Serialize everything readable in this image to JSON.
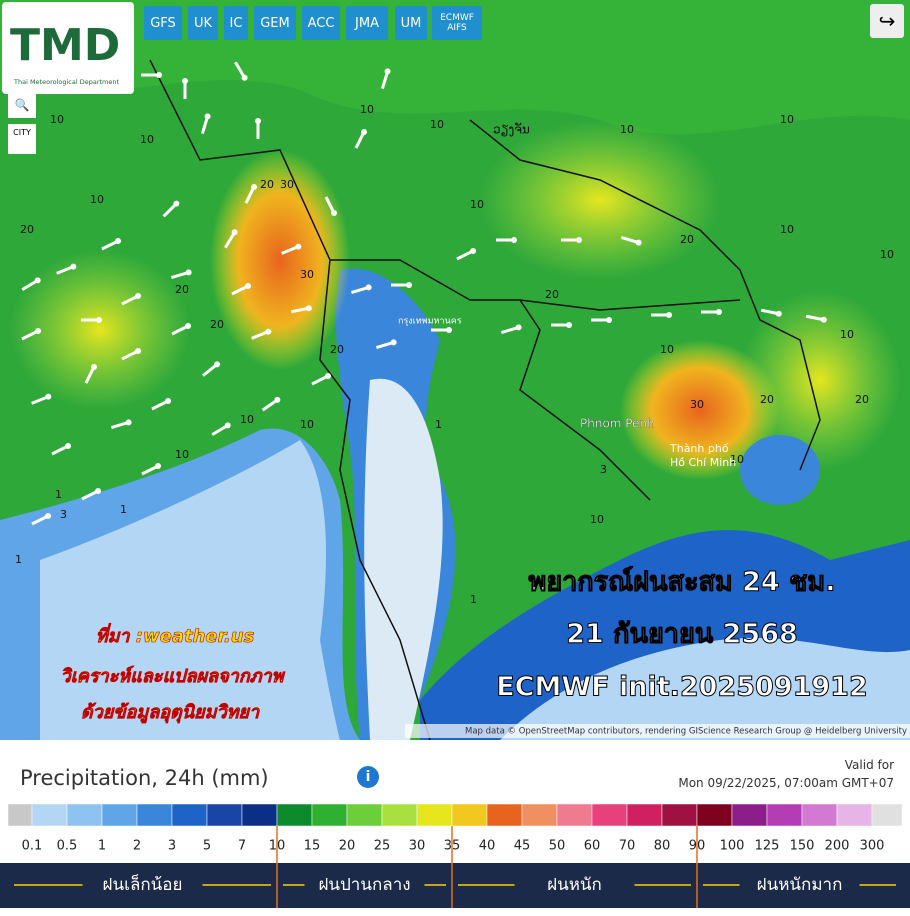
{
  "logo": {
    "text": "TMD",
    "subtitle": "Thai Meteorological Department"
  },
  "model_buttons": [
    "GFS",
    "UK",
    "IC",
    "GEM",
    "ACC",
    "JMA",
    "UM",
    "ECMWF AIFS"
  ],
  "side_buttons": [
    "CITY"
  ],
  "map_labels": [
    "กรุงเทพมหานคร",
    "ວຽງຈັນ",
    "Phnom Penh",
    "Thành phố",
    "Hồ Chí Minh"
  ],
  "contour_labels": [
    10,
    10,
    10,
    20,
    20,
    30,
    20,
    10,
    10,
    20,
    30,
    20,
    10,
    10,
    10,
    1,
    1,
    1,
    3,
    10,
    20,
    10,
    20,
    30,
    10,
    10,
    20,
    10,
    10,
    1,
    10,
    20,
    10,
    3,
    1,
    10
  ],
  "overlay": [
    "พยากรณ์ฝนสะสม 24 ชม.",
    "21 กันยายน 2568",
    "ECMWF init.2025091912"
  ],
  "source": [
    "ที่มา :weather.us",
    "วิเคราะห์และแปลผลจากภาพ",
    "ด้วยข้อมูลอุตุนิยมวิทยา"
  ],
  "attribution": "Map data © OpenStreetMap contributors, rendering GIScience Research Group @ Heidelberg University",
  "legend": {
    "title": "Precipitation, 24h (mm)",
    "valid_label": "Valid for",
    "valid_time": "Mon 09/22/2025, 07:00am GMT+07",
    "scale_labels": [
      "0.1",
      "0.5",
      "1",
      "2",
      "3",
      "5",
      "7",
      "10",
      "15",
      "20",
      "25",
      "30",
      "35",
      "40",
      "45",
      "50",
      "60",
      "70",
      "80",
      "90",
      "100",
      "125",
      "150",
      "200",
      "300"
    ],
    "scale_colors": [
      "#c8c8c8",
      "#b4d6f5",
      "#8ec2f0",
      "#5fa5e8",
      "#3a86da",
      "#1e63c8",
      "#1845a6",
      "#0b2f86",
      "#0c8a2c",
      "#30b030",
      "#6ccf3a",
      "#a8e040",
      "#e6e61e",
      "#f0c81e",
      "#e8641e",
      "#f09060",
      "#f07a90",
      "#e8407a",
      "#d02060",
      "#a01040",
      "#800020",
      "#8c1e8c",
      "#b43cb4",
      "#d27ad2",
      "#e6b4e6",
      "#e0e0e0"
    ],
    "categories": [
      "ฝนเล็กน้อย",
      "ฝนปานกลาง",
      "ฝนหนัก",
      "ฝนหนักมาก"
    ]
  }
}
